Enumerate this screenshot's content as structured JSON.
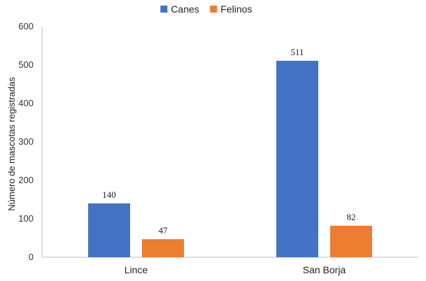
{
  "chart_data": {
    "type": "bar",
    "categories": [
      "Lince",
      "San Borja"
    ],
    "series": [
      {
        "name": "Canes",
        "values": [
          140,
          511
        ],
        "color": "#4472c4"
      },
      {
        "name": "Felinos",
        "values": [
          47,
          82
        ],
        "color": "#ed7d31"
      }
    ],
    "title": "",
    "xlabel": "",
    "ylabel": "Número de mascotas registradas",
    "ylim": [
      0,
      600
    ],
    "yticks": [
      0,
      100,
      200,
      300,
      400,
      500,
      600
    ],
    "grid": false,
    "legend_position": "top-center",
    "data_labels": true
  }
}
